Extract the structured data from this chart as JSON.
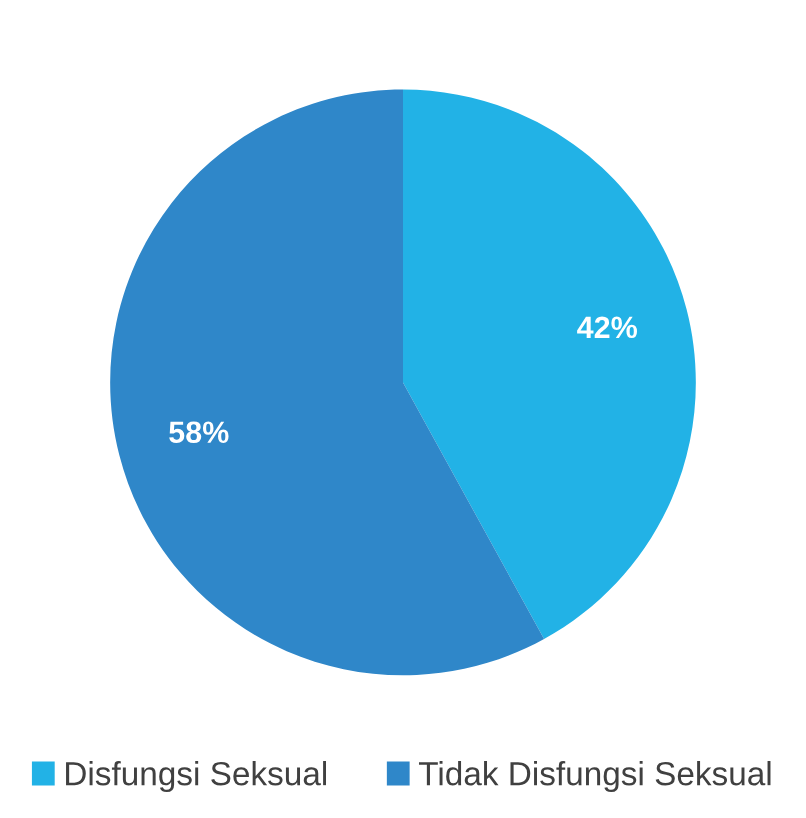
{
  "chart_data": {
    "type": "pie",
    "categories": [
      "Disfungsi Seksual",
      "Tidak Disfungsi Seksual"
    ],
    "values": [
      42,
      58
    ],
    "colors": [
      "#22b2e6",
      "#2f87c9"
    ],
    "value_labels": [
      "42%",
      "58%"
    ],
    "legend": "bottom"
  }
}
